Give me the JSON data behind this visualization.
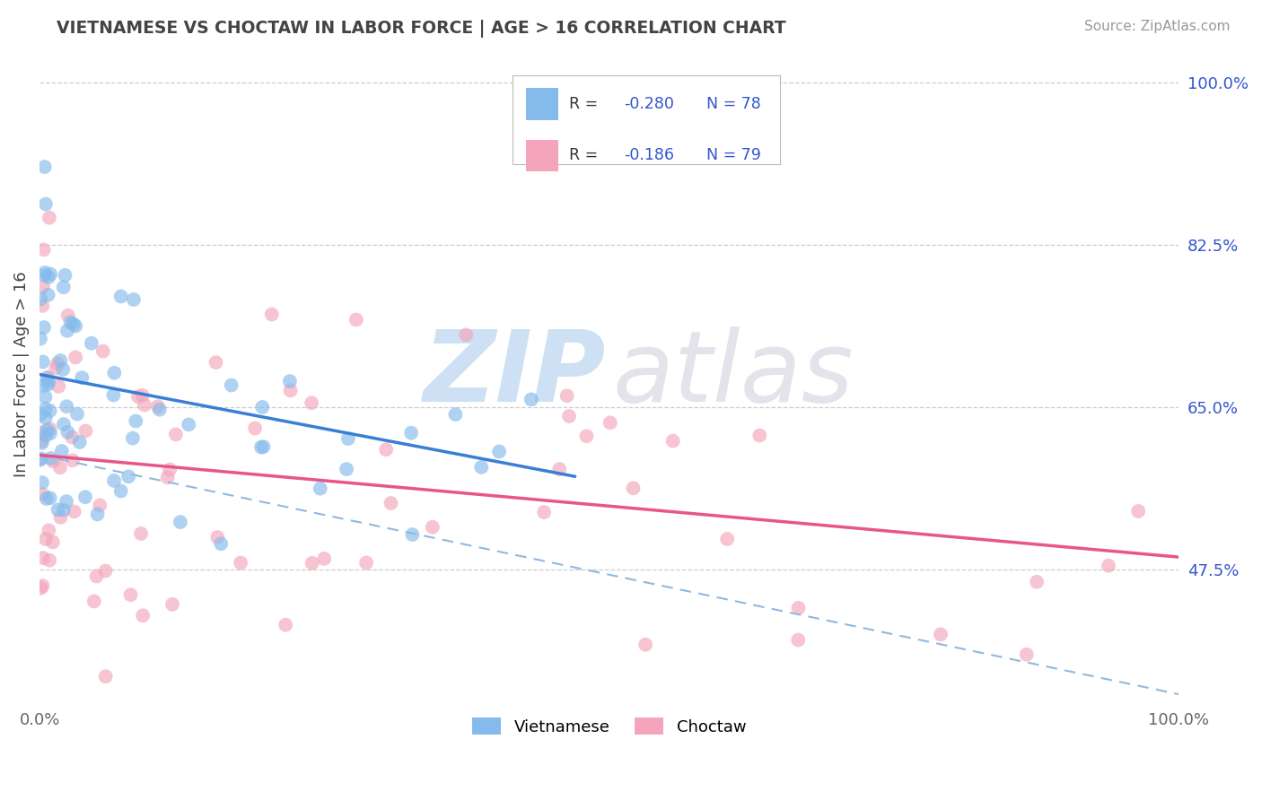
{
  "title": "VIETNAMESE VS CHOCTAW IN LABOR FORCE | AGE > 16 CORRELATION CHART",
  "source": "Source: ZipAtlas.com",
  "ylabel": "In Labor Force | Age > 16",
  "xlim": [
    0.0,
    1.0
  ],
  "ylim": [
    0.33,
    1.04
  ],
  "yticks": [
    0.475,
    0.65,
    0.825,
    1.0
  ],
  "ytick_labels": [
    "47.5%",
    "65.0%",
    "82.5%",
    "100.0%"
  ],
  "xticks": [
    0.0,
    1.0
  ],
  "xtick_labels": [
    "0.0%",
    "100.0%"
  ],
  "background_color": "#ffffff",
  "grid_color": "#cccccc",
  "viet_color": "#85bbec",
  "choctaw_color": "#f4a5bb",
  "viet_line_color": "#3a7fd5",
  "choctaw_line_color": "#e8558a",
  "dashed_line_color": "#90b8e0",
  "title_color": "#444444",
  "r_value_color": "#3355cc",
  "legend_r1": "R = -0.280",
  "legend_n1": "N = 78",
  "legend_r2": "R = -0.186",
  "legend_n2": "N = 79",
  "viet_line_x": [
    0.0,
    0.47
  ],
  "viet_line_y": [
    0.685,
    0.575
  ],
  "choctaw_line_x": [
    0.0,
    1.0
  ],
  "choctaw_line_y": [
    0.598,
    0.488
  ],
  "dashed_line_x": [
    0.0,
    1.0
  ],
  "dashed_line_y": [
    0.598,
    0.34
  ],
  "watermark_zip_color": "#b8d4f0",
  "watermark_atlas_color": "#c8c8d8"
}
